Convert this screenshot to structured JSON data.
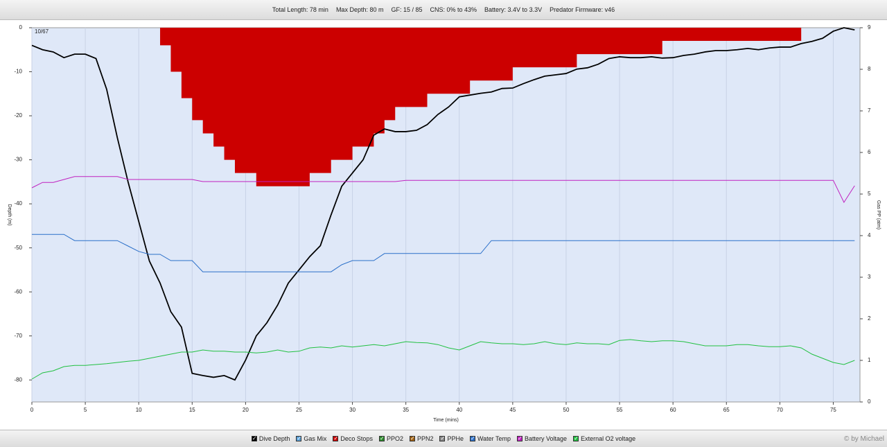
{
  "header_items": [
    "Total Length: 78 min",
    "Max Depth: 80 m",
    "GF: 15 / 85",
    "CNS: 0% to 43%",
    "Battery: 3.4V to 3.3V",
    "Predator Firmware: v46"
  ],
  "credit": "© by Michael",
  "chart_data": {
    "type": "line",
    "annotation": "10/67",
    "xlabel": "Time (mins)",
    "ylabel": "Depth (m)",
    "y2label": "Gas PP (atm)",
    "xlim": [
      0,
      77.5
    ],
    "xticks": [
      0,
      5,
      10,
      15,
      20,
      25,
      30,
      35,
      40,
      45,
      50,
      55,
      60,
      65,
      70,
      75
    ],
    "ylim": [
      -85,
      0
    ],
    "yticks": [
      0,
      -10,
      -20,
      -30,
      -40,
      -50,
      -60,
      -70,
      -80
    ],
    "y2lim": [
      0,
      9
    ],
    "y2ticks": [
      0,
      1,
      2,
      3,
      4,
      5,
      6,
      7,
      8,
      9
    ],
    "grid": true,
    "x": [
      0,
      1,
      2,
      3,
      4,
      5,
      6,
      7,
      8,
      9,
      10,
      11,
      12,
      13,
      14,
      15,
      16,
      17,
      18,
      19,
      20,
      21,
      22,
      23,
      24,
      25,
      26,
      27,
      28,
      29,
      30,
      31,
      32,
      33,
      34,
      35,
      36,
      37,
      38,
      39,
      40,
      41,
      42,
      43,
      44,
      45,
      46,
      47,
      48,
      49,
      50,
      51,
      52,
      53,
      54,
      55,
      56,
      57,
      58,
      59,
      60,
      61,
      62,
      63,
      64,
      65,
      66,
      67,
      68,
      69,
      70,
      71,
      72,
      73,
      74,
      75,
      76,
      77
    ],
    "series": [
      {
        "name": "Dive Depth",
        "color": "#000000",
        "style": "line",
        "values": [
          -4,
          -5,
          -5.5,
          -6.8,
          -6,
          -6,
          -7,
          -14,
          -25,
          -35,
          -44,
          -53,
          -58,
          -64.5,
          -68,
          -78.5,
          -79,
          -79.4,
          -79,
          -80,
          -75.5,
          -70,
          -67,
          -63,
          -58,
          -55,
          -52,
          -49.5,
          -42.5,
          -36,
          -33,
          -30,
          -24.4,
          -23,
          -23.6,
          -23.6,
          -23.3,
          -22,
          -19.7,
          -18,
          -15.7,
          -15.3,
          -14.9,
          -14.6,
          -13.8,
          -13.7,
          -12.7,
          -11.8,
          -11,
          -10.7,
          -10.4,
          -9.4,
          -9.1,
          -8.3,
          -7,
          -6.6,
          -6.8,
          -6.8,
          -6.6,
          -6.9,
          -6.8,
          -6.3,
          -6,
          -5.5,
          -5.2,
          -5.2,
          -5,
          -4.7,
          -5,
          -4.6,
          -4.4,
          -4.4,
          -3.6,
          -3.1,
          -2.4,
          -0.8,
          0,
          -0.5
        ]
      },
      {
        "name": "Gas Mix",
        "color": "#5aa0d8"
      },
      {
        "name": "Deco Stops",
        "color": "#cc0000",
        "style": "step-area",
        "values": [
          null,
          null,
          null,
          null,
          null,
          null,
          null,
          null,
          null,
          null,
          null,
          null,
          -4,
          -10,
          -16,
          -21,
          -24,
          -27,
          -30,
          -33,
          -33,
          -36,
          -36,
          -36,
          -36,
          -36,
          -33,
          -33,
          -30,
          -30,
          -27,
          -27,
          -24,
          -21,
          -18,
          -18,
          -18,
          -15,
          -15,
          -15,
          -15,
          -12,
          -12,
          -12,
          -12,
          -9,
          -9,
          -9,
          -9,
          -9,
          -9,
          -6,
          -6,
          -6,
          -6,
          -6,
          -6,
          -6,
          -6,
          -3,
          -3,
          -3,
          -3,
          -3,
          -3,
          -3,
          -3,
          -3,
          -3,
          -3,
          -3,
          -3,
          null,
          null,
          null,
          null,
          null,
          null
        ]
      },
      {
        "name": "PPO2",
        "color": "#2a8a2a"
      },
      {
        "name": "PPN2",
        "color": "#a06010"
      },
      {
        "name": "PPHe",
        "color": "#888888"
      },
      {
        "name": "Water Temp",
        "color": "#2a6fc9",
        "style": "line",
        "axis": "y2",
        "values": [
          4.03,
          4.03,
          4.03,
          4.03,
          3.88,
          3.88,
          3.88,
          3.88,
          3.88,
          3.75,
          3.62,
          3.55,
          3.55,
          3.4,
          3.4,
          3.4,
          3.13,
          3.13,
          3.13,
          3.13,
          3.13,
          3.13,
          3.13,
          3.13,
          3.13,
          3.13,
          3.13,
          3.13,
          3.13,
          3.3,
          3.4,
          3.4,
          3.4,
          3.57,
          3.57,
          3.57,
          3.57,
          3.57,
          3.57,
          3.57,
          3.57,
          3.57,
          3.57,
          3.88,
          3.88,
          3.88,
          3.88,
          3.88,
          3.88,
          3.88,
          3.88,
          3.88,
          3.88,
          3.88,
          3.88,
          3.88,
          3.88,
          3.88,
          3.88,
          3.88,
          3.88,
          3.88,
          3.88,
          3.88,
          3.88,
          3.88,
          3.88,
          3.88,
          3.88,
          3.88,
          3.88,
          3.88,
          3.88,
          3.88,
          3.88,
          3.88,
          3.88,
          3.88
        ]
      },
      {
        "name": "Battery Voltage",
        "color": "#c020c0",
        "style": "line",
        "axis": "y2",
        "values": [
          5.15,
          5.28,
          5.28,
          5.35,
          5.42,
          5.42,
          5.42,
          5.42,
          5.42,
          5.35,
          5.35,
          5.35,
          5.35,
          5.35,
          5.35,
          5.35,
          5.3,
          5.3,
          5.3,
          5.3,
          5.3,
          5.3,
          5.3,
          5.3,
          5.3,
          5.3,
          5.3,
          5.3,
          5.3,
          5.3,
          5.3,
          5.3,
          5.3,
          5.3,
          5.3,
          5.33,
          5.33,
          5.33,
          5.33,
          5.33,
          5.33,
          5.33,
          5.33,
          5.33,
          5.33,
          5.33,
          5.33,
          5.33,
          5.33,
          5.33,
          5.33,
          5.33,
          5.33,
          5.33,
          5.33,
          5.33,
          5.33,
          5.33,
          5.33,
          5.33,
          5.33,
          5.33,
          5.33,
          5.33,
          5.33,
          5.33,
          5.33,
          5.33,
          5.33,
          5.33,
          5.33,
          5.33,
          5.33,
          5.33,
          5.33,
          5.33,
          4.8,
          5.2
        ]
      },
      {
        "name": "External O2 voltage",
        "color": "#20c040",
        "style": "line",
        "axis": "y2",
        "values": [
          0.55,
          0.7,
          0.75,
          0.85,
          0.88,
          0.88,
          0.9,
          0.92,
          0.95,
          0.98,
          1.0,
          1.05,
          1.1,
          1.15,
          1.2,
          1.2,
          1.25,
          1.22,
          1.22,
          1.2,
          1.2,
          1.18,
          1.2,
          1.25,
          1.2,
          1.22,
          1.3,
          1.32,
          1.3,
          1.35,
          1.32,
          1.35,
          1.38,
          1.35,
          1.4,
          1.45,
          1.43,
          1.42,
          1.38,
          1.3,
          1.25,
          1.35,
          1.45,
          1.42,
          1.4,
          1.4,
          1.38,
          1.4,
          1.45,
          1.4,
          1.38,
          1.42,
          1.4,
          1.4,
          1.38,
          1.48,
          1.5,
          1.47,
          1.45,
          1.47,
          1.47,
          1.45,
          1.4,
          1.35,
          1.35,
          1.35,
          1.38,
          1.38,
          1.35,
          1.33,
          1.33,
          1.35,
          1.3,
          1.15,
          1.05,
          0.95,
          0.9,
          1.0
        ]
      }
    ]
  }
}
